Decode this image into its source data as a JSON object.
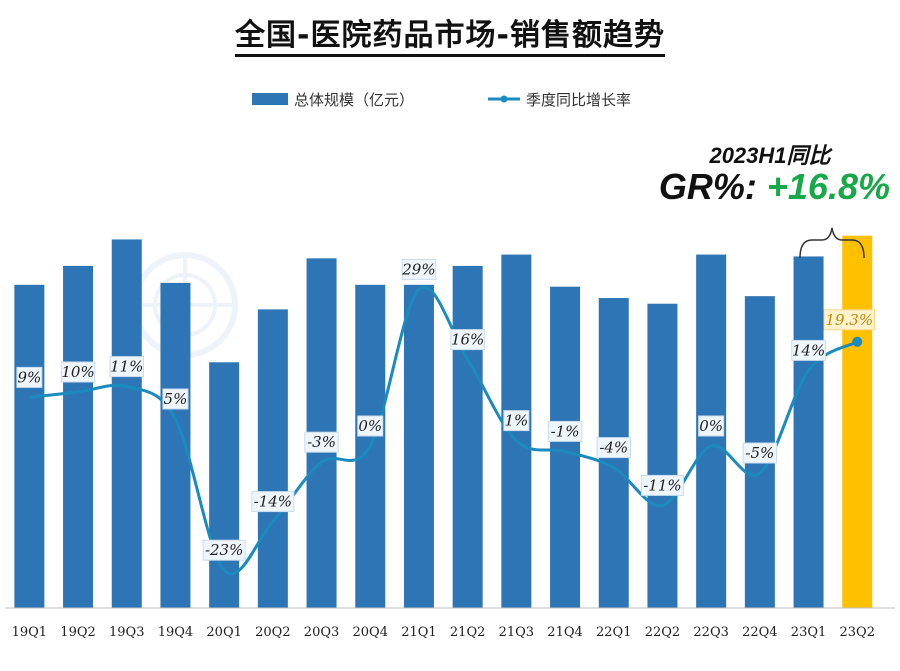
{
  "chart_data": {
    "type": "bar+line",
    "title": "全国-医院药品市场-销售额趋势",
    "categories": [
      "19Q1",
      "19Q2",
      "19Q3",
      "19Q4",
      "20Q1",
      "20Q2",
      "20Q3",
      "20Q4",
      "21Q1",
      "21Q2",
      "21Q3",
      "21Q4",
      "22Q1",
      "22Q2",
      "22Q3",
      "22Q4",
      "23Q1",
      "23Q2"
    ],
    "series": [
      {
        "name": "总体规模（亿元）",
        "kind": "bar",
        "values": [
          1710,
          1810,
          1950,
          1720,
          1300,
          1580,
          1850,
          1710,
          1710,
          1810,
          1870,
          1700,
          1640,
          1610,
          1870,
          1650,
          1860,
          1970
        ],
        "colors": [
          "#2e75b6",
          "#2e75b6",
          "#2e75b6",
          "#2e75b6",
          "#2e75b6",
          "#2e75b6",
          "#2e75b6",
          "#2e75b6",
          "#2e75b6",
          "#2e75b6",
          "#2e75b6",
          "#2e75b6",
          "#2e75b6",
          "#2e75b6",
          "#2e75b6",
          "#2e75b6",
          "#2e75b6",
          "#ffc000"
        ]
      },
      {
        "name": "季度同比增长率",
        "kind": "line",
        "values": [
          9,
          10,
          11,
          5,
          -23,
          -14,
          -3,
          0,
          29,
          16,
          1,
          -1,
          -4,
          -11,
          0,
          -5,
          14,
          19.3
        ],
        "labels": [
          "9%",
          "10%",
          "11%",
          "5%",
          "-23%",
          "-14%",
          "-3%",
          "0%",
          "29%",
          "16%",
          "1%",
          "-1%",
          "-4%",
          "-11%",
          "0%",
          "-5%",
          "14%",
          "19.3%"
        ],
        "color": "#1b8bbd"
      }
    ],
    "bar_ylim": [
      0,
      2000
    ],
    "line_ylim": [
      -30,
      40
    ],
    "legend_position": "top",
    "grid": false
  },
  "annotation": {
    "line1": "2023H1同比",
    "label": "GR%: ",
    "value": "+16.8%"
  },
  "colors": {
    "bar": "#2e75b6",
    "highlight_bar": "#ffc000",
    "line": "#1b8bbd",
    "growth_text": "#18a84a"
  }
}
